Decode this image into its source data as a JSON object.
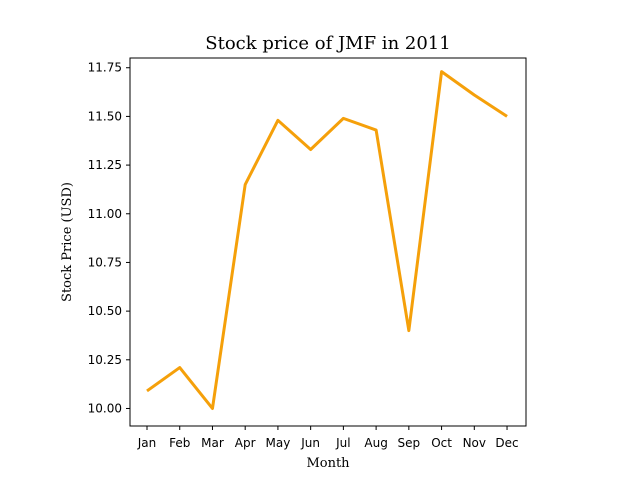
{
  "chart_data": {
    "type": "line",
    "title": "Stock price of JMF in 2011",
    "xlabel": "Month",
    "ylabel": "Stock Price (USD)",
    "categories": [
      "Jan",
      "Feb",
      "Mar",
      "Apr",
      "May",
      "Jun",
      "Jul",
      "Aug",
      "Sep",
      "Oct",
      "Nov",
      "Dec"
    ],
    "series": [
      {
        "values": [
          10.09,
          10.21,
          10.0,
          11.15,
          11.48,
          11.33,
          11.49,
          11.43,
          10.4,
          11.73,
          11.61,
          11.5
        ],
        "color": "#f5a00a"
      }
    ],
    "ylim": [
      9.91,
      11.8
    ],
    "yticks": [
      "10.00",
      "10.25",
      "10.50",
      "10.75",
      "11.00",
      "11.25",
      "11.50",
      "11.75"
    ],
    "grid": false,
    "legend": "none"
  }
}
